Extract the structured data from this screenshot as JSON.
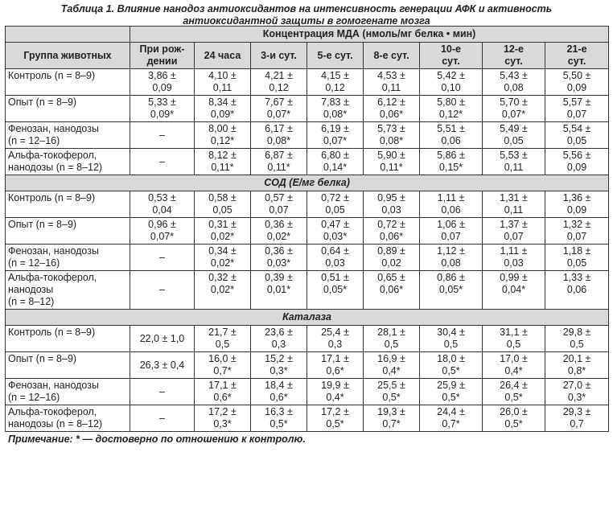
{
  "caption": {
    "line1": "Таблица 1. Влияние нанодоз антиоксидантов на интенсивность генерации АФК и активность",
    "line2": "антиоксидантной защиты в гомогенате мозга"
  },
  "header": {
    "mda_title": "Концентрация МДА (нмоль/мг белка • мин)",
    "col_group": "Группа животных",
    "cols": [
      "При рож-",
      "24 часа",
      "3-и сут.",
      "5-е сут.",
      "8-е сут.",
      "10-е",
      "12-е",
      "21-е"
    ],
    "cols2": [
      "дении",
      "",
      "",
      "",
      "",
      "сут.",
      "сут.",
      "сут."
    ]
  },
  "sections": [
    {
      "title": "",
      "rows": [
        {
          "group": [
            "Контроль (n = 8–9)"
          ],
          "cells": [
            [
              "3,86 ±",
              "0,09"
            ],
            [
              "4,10 ±",
              "0,11"
            ],
            [
              "4,21 ±",
              "0,12"
            ],
            [
              "4,15 ±",
              "0,12"
            ],
            [
              "4,53 ±",
              "0,11"
            ],
            [
              "5,42 ±",
              "0,10"
            ],
            [
              "5,43 ±",
              "0,08"
            ],
            [
              "5,50 ±",
              "0,09"
            ]
          ]
        },
        {
          "group": [
            "Опыт (n = 8–9)"
          ],
          "cells": [
            [
              "5,33 ±",
              "0,09*"
            ],
            [
              "8,34 ±",
              "0,09*"
            ],
            [
              "7,67 ±",
              "0,07*"
            ],
            [
              "7,83 ±",
              "0,08*"
            ],
            [
              "6,12 ±",
              "0,06*"
            ],
            [
              "5,80 ±",
              "0,12*"
            ],
            [
              "5,70 ±",
              "0,07*"
            ],
            [
              "5,57 ±",
              "0,07"
            ]
          ]
        },
        {
          "group": [
            "Фенозан, нанодозы",
            "(n = 12–16)"
          ],
          "cells": [
            [
              "–"
            ],
            [
              "8,00 ±",
              "0,12*"
            ],
            [
              "6,17 ±",
              "0,08*"
            ],
            [
              "6,19 ±",
              "0,07*"
            ],
            [
              "5,73 ±",
              "0,08*"
            ],
            [
              "5,51 ±",
              "0,06"
            ],
            [
              "5,49 ±",
              "0,05"
            ],
            [
              "5,54 ±",
              "0,05"
            ]
          ]
        },
        {
          "group": [
            "Альфа-токоферол,",
            "нанодозы (n = 8–12)"
          ],
          "cells": [
            [
              "–"
            ],
            [
              "8,12 ±",
              "0,11*"
            ],
            [
              "6,87 ±",
              "0,11*"
            ],
            [
              "6,80 ±",
              "0,14*"
            ],
            [
              "5,90 ±",
              "0,11*"
            ],
            [
              "5,86 ±",
              "0,15*"
            ],
            [
              "5,53 ±",
              "0,11"
            ],
            [
              "5,56 ±",
              "0,09"
            ]
          ]
        }
      ]
    },
    {
      "title": "СОД (Е/мг белка)",
      "rows": [
        {
          "group": [
            "Контроль (n = 8–9)"
          ],
          "cells": [
            [
              "0,53 ±",
              "0,04"
            ],
            [
              "0,58 ±",
              "0,05"
            ],
            [
              "0,57 ±",
              "0,07"
            ],
            [
              "0,72 ±",
              "0,05"
            ],
            [
              "0,95 ±",
              "0,03"
            ],
            [
              "1,11 ±",
              "0,06"
            ],
            [
              "1,31 ±",
              "0,11"
            ],
            [
              "1,36 ±",
              "0,09"
            ]
          ]
        },
        {
          "group": [
            "Опыт (n = 8–9)"
          ],
          "cells": [
            [
              "0,96 ±",
              "0,07*"
            ],
            [
              "0,31 ±",
              "0,02*"
            ],
            [
              "0,36 ±",
              "0,02*"
            ],
            [
              "0,47 ±",
              "0,03*"
            ],
            [
              "0,72 ±",
              "0,06*"
            ],
            [
              "1,06 ±",
              "0,07"
            ],
            [
              "1,37 ±",
              "0,07"
            ],
            [
              "1,32 ±",
              "0,07"
            ]
          ]
        },
        {
          "group": [
            "Фенозан, нанодозы",
            "(n = 12–16)"
          ],
          "cells": [
            [
              "–"
            ],
            [
              "0,34 ±",
              "0,02*"
            ],
            [
              "0,36 ±",
              "0,03*"
            ],
            [
              "0,64 ±",
              "0,03"
            ],
            [
              "0,89 ±",
              "0,02"
            ],
            [
              "1,12 ±",
              "0,08"
            ],
            [
              "1,11 ±",
              "0,03"
            ],
            [
              "1,18 ±",
              "0,05"
            ]
          ]
        },
        {
          "group": [
            "Альфа-токоферол,",
            "нанодозы",
            "(n = 8–12)"
          ],
          "cells": [
            [
              "–"
            ],
            [
              "0,32 ±",
              "0,02*"
            ],
            [
              "0,39 ±",
              "0,01*"
            ],
            [
              "0,51 ±",
              "0,05*"
            ],
            [
              "0,65 ±",
              "0,06*"
            ],
            [
              "0,86 ±",
              "0,05*"
            ],
            [
              "0,99 ±",
              "0,04*"
            ],
            [
              "1,33 ±",
              "0,06"
            ]
          ]
        }
      ]
    },
    {
      "title": "Каталаза",
      "rows": [
        {
          "group": [
            "Контроль (n = 8–9)"
          ],
          "cells": [
            [
              "22,0 ± 1,0"
            ],
            [
              "21,7 ±",
              "0,5"
            ],
            [
              "23,6 ±",
              "0,3"
            ],
            [
              "25,4 ±",
              "0,3"
            ],
            [
              "28,1 ±",
              "0,5"
            ],
            [
              "30,4 ±",
              "0,5"
            ],
            [
              "31,1 ±",
              "0,5"
            ],
            [
              "29,8 ±",
              "0,5"
            ]
          ]
        },
        {
          "group": [
            "Опыт (n = 8–9)"
          ],
          "cells": [
            [
              "26,3 ± 0,4"
            ],
            [
              "16,0 ±",
              "0,7*"
            ],
            [
              "15,2 ±",
              "0,3*"
            ],
            [
              "17,1 ±",
              "0,6*"
            ],
            [
              "16,9 ±",
              "0,4*"
            ],
            [
              "18,0 ±",
              "0,5*"
            ],
            [
              "17,0 ±",
              "0,4*"
            ],
            [
              "20,1 ±",
              "0,8*"
            ]
          ]
        },
        {
          "group": [
            "Фенозан, нанодозы",
            "(n = 12–16)"
          ],
          "cells": [
            [
              "–"
            ],
            [
              "17,1 ±",
              "0,6*"
            ],
            [
              "18,4 ±",
              "0,6*"
            ],
            [
              "19,9 ±",
              "0,4*"
            ],
            [
              "25,5 ±",
              "0,5*"
            ],
            [
              "25,9 ±",
              "0,5*"
            ],
            [
              "26,4 ±",
              "0,5*"
            ],
            [
              "27,0 ±",
              "0,3*"
            ]
          ]
        },
        {
          "group": [
            "Альфа-токоферол,",
            "нанодозы (n = 8–12)"
          ],
          "cells": [
            [
              "–"
            ],
            [
              "17,2 ±",
              "0,3*"
            ],
            [
              "16,3 ±",
              "0,5*"
            ],
            [
              "17,2 ±",
              "0,5*"
            ],
            [
              "19,3 ±",
              "0,7*"
            ],
            [
              "24,4 ±",
              "0,7*"
            ],
            [
              "26,0 ±",
              "0,5*"
            ],
            [
              "29,3 ±",
              "0,7"
            ]
          ]
        }
      ]
    }
  ],
  "note": "Примечание: * — достоверно по отношению к контролю."
}
